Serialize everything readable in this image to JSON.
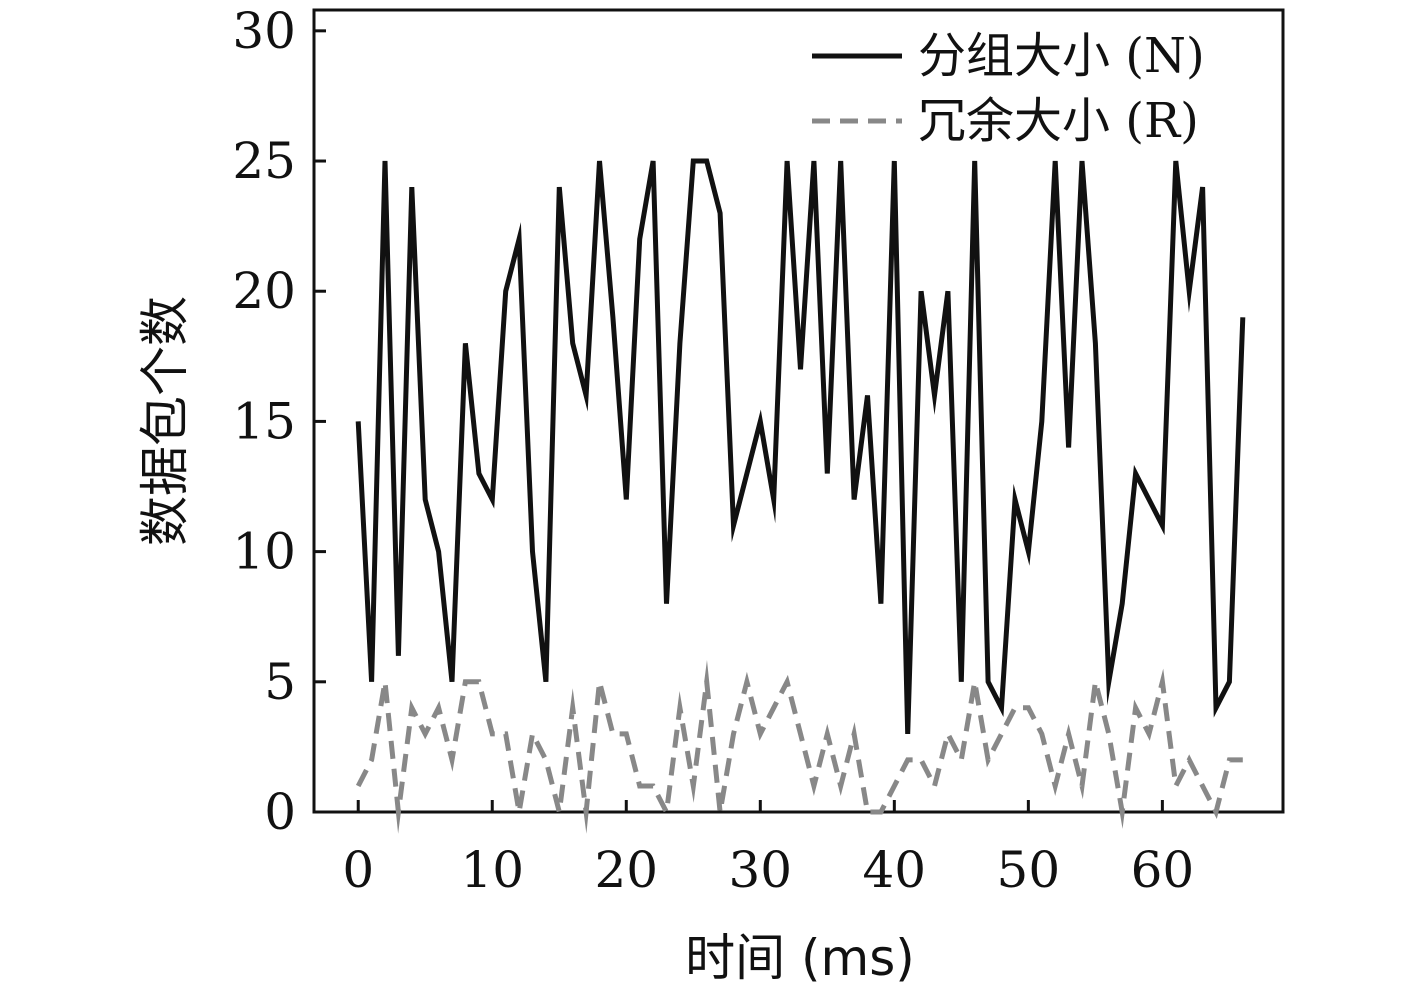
{
  "chart_data": {
    "type": "line",
    "xlabel": "时间 (ms)",
    "ylabel": "数据包个数",
    "xlim": [
      -3.3,
      69.0
    ],
    "ylim": [
      0,
      30.8
    ],
    "xticks": [
      0,
      10,
      20,
      30,
      40,
      50,
      60
    ],
    "yticks": [
      0,
      5,
      10,
      15,
      20,
      25,
      30
    ],
    "legend_position": "top-right",
    "grid": false,
    "x": [
      0,
      1,
      2,
      3,
      4,
      5,
      6,
      7,
      8,
      9,
      10,
      11,
      12,
      13,
      14,
      15,
      16,
      17,
      18,
      19,
      20,
      21,
      22,
      23,
      24,
      25,
      26,
      27,
      28,
      29,
      30,
      31,
      32,
      33,
      34,
      35,
      36,
      37,
      38,
      39,
      40,
      41,
      42,
      43,
      44,
      45,
      46,
      47,
      48,
      49,
      50,
      51,
      52,
      53,
      54,
      55,
      56,
      57,
      58,
      59,
      60,
      61,
      62,
      63,
      64,
      65,
      66
    ],
    "series": [
      {
        "name": "分组大小 (N)",
        "color": "#111111",
        "style": "solid",
        "values": [
          15,
          5,
          25,
          6,
          24,
          12,
          10,
          5,
          18,
          13,
          12,
          20,
          22,
          10,
          5,
          24,
          18,
          16,
          25,
          19,
          12,
          22,
          25,
          8,
          18,
          25,
          25,
          23,
          11,
          13,
          15,
          12,
          25,
          17,
          25,
          13,
          25,
          12,
          16,
          8,
          25,
          3,
          20,
          16,
          20,
          5,
          25,
          5,
          4,
          12,
          10,
          15,
          25,
          14,
          25,
          18,
          5,
          8,
          13,
          12,
          11,
          25,
          20,
          24,
          4,
          5,
          19
        ]
      },
      {
        "name": "冗余大小 (R)",
        "color": "#888888",
        "style": "dashed",
        "values": [
          1,
          2,
          5,
          0,
          4,
          3,
          4,
          2,
          5,
          5,
          3,
          3,
          0,
          3,
          2,
          0,
          4,
          0,
          5,
          3,
          3,
          1,
          1,
          0,
          4,
          1,
          5,
          0,
          3,
          5,
          3,
          4,
          5,
          3,
          1,
          3,
          1,
          3,
          0,
          0,
          1,
          2,
          2,
          1,
          3,
          2,
          5,
          2,
          3,
          4,
          4,
          3,
          1,
          3,
          1,
          5,
          3,
          0,
          4,
          3,
          5,
          1,
          2,
          1,
          0,
          2,
          2
        ]
      }
    ]
  }
}
